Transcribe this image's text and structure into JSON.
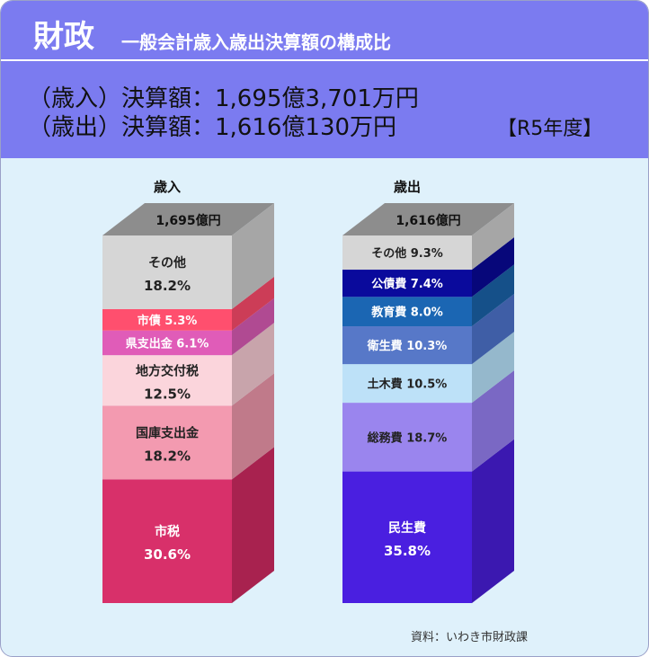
{
  "header": {
    "title": "財政",
    "subtitle": "一般会計歳入歳出決算額の構成比",
    "revenue_line": "（歳入）決算額：1,695億3,701万円",
    "expenditure_line": "（歳出）決算額：1,616億130万円",
    "fiscal_year": "【R5年度】"
  },
  "source": "資料：いわき市財政課",
  "colors": {
    "header_bg": "#7b7bf0",
    "page_bg": "#dff1fb"
  },
  "chart_data": [
    {
      "type": "bar",
      "stacked": true,
      "title": "歳入",
      "total_label": "1,695億円",
      "unit": "%",
      "segments": [
        {
          "name": "市税",
          "label": "市税",
          "value_label": "30.6%",
          "value": 30.6,
          "color": "#d8306a",
          "side": "#a8224f"
        },
        {
          "name": "国庫支出金",
          "label": "国庫支出金",
          "value_label": "18.2%",
          "value": 18.2,
          "color": "#f39ab0",
          "side": "#c07a8a"
        },
        {
          "name": "地方交付税",
          "label": "地方交付税",
          "value_label": "12.5%",
          "value": 12.5,
          "color": "#fbd5dc",
          "side": "#c8a4ab"
        },
        {
          "name": "県支出金",
          "label": "県支出金 6.1%",
          "value_label": "",
          "value": 6.1,
          "color": "#e05cb8",
          "side": "#b04a92"
        },
        {
          "name": "市債",
          "label": "市債 5.3%",
          "value_label": "",
          "value": 5.3,
          "color": "#ff4f6e",
          "side": "#cc3d57"
        },
        {
          "name": "その他",
          "label": "その他",
          "value_label": "18.2%",
          "value": 18.2,
          "color": "#d6d6d6",
          "side": "#a6a6a6"
        }
      ]
    },
    {
      "type": "bar",
      "stacked": true,
      "title": "歳出",
      "total_label": "1,616億円",
      "unit": "%",
      "segments": [
        {
          "name": "民生費",
          "label": "民生費",
          "value_label": "35.8%",
          "value": 35.8,
          "color": "#4a1fe0",
          "side": "#3b18b0"
        },
        {
          "name": "総務費",
          "label": "総務費 18.7%",
          "value_label": "",
          "value": 18.7,
          "color": "#9a85ee",
          "side": "#7a68c4"
        },
        {
          "name": "土木費",
          "label": "土木費 10.5%",
          "value_label": "",
          "value": 10.5,
          "color": "#bde1f8",
          "side": "#95b8cc"
        },
        {
          "name": "衛生費",
          "label": "衛生費 10.3%",
          "value_label": "",
          "value": 10.3,
          "color": "#5778c8",
          "side": "#3f5ea6"
        },
        {
          "name": "教育費",
          "label": "教育費 8.0%",
          "value_label": "",
          "value": 8.0,
          "color": "#1b66b3",
          "side": "#155089"
        },
        {
          "name": "公債費",
          "label": "公債費 7.4%",
          "value_label": "",
          "value": 7.4,
          "color": "#0a0a9c",
          "side": "#07077a"
        },
        {
          "name": "その他",
          "label": "その他 9.3%",
          "value_label": "",
          "value": 9.3,
          "color": "#d6d6d6",
          "side": "#a6a6a6"
        }
      ]
    }
  ]
}
